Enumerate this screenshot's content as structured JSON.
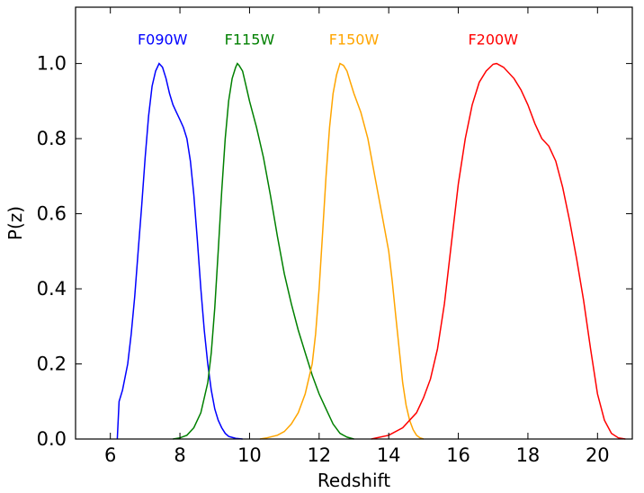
{
  "chart_data": {
    "type": "line",
    "title": "",
    "xlabel": "Redshift",
    "ylabel": "P(z)",
    "xlim": [
      5,
      21
    ],
    "ylim": [
      0,
      1.15
    ],
    "xticks": [
      6,
      8,
      10,
      12,
      14,
      16,
      18,
      20
    ],
    "xtick_labels": [
      "6",
      "8",
      "10",
      "12",
      "14",
      "16",
      "18",
      "20"
    ],
    "yticks": [
      0,
      0.2,
      0.4,
      0.6,
      0.8,
      1.0
    ],
    "ytick_labels": [
      "0.0",
      "0.2",
      "0.4",
      "0.6",
      "0.8",
      "1.0"
    ],
    "grid": false,
    "series": [
      {
        "name": "F090W",
        "color": "#0000ff",
        "points": [
          [
            6.2,
            0.0
          ],
          [
            6.25,
            0.1
          ],
          [
            6.35,
            0.13
          ],
          [
            6.5,
            0.2
          ],
          [
            6.6,
            0.28
          ],
          [
            6.7,
            0.38
          ],
          [
            6.8,
            0.5
          ],
          [
            6.9,
            0.62
          ],
          [
            7.0,
            0.75
          ],
          [
            7.1,
            0.86
          ],
          [
            7.2,
            0.94
          ],
          [
            7.3,
            0.98
          ],
          [
            7.4,
            1.0
          ],
          [
            7.5,
            0.99
          ],
          [
            7.6,
            0.96
          ],
          [
            7.7,
            0.92
          ],
          [
            7.8,
            0.89
          ],
          [
            7.9,
            0.87
          ],
          [
            8.0,
            0.85
          ],
          [
            8.1,
            0.83
          ],
          [
            8.2,
            0.8
          ],
          [
            8.3,
            0.74
          ],
          [
            8.4,
            0.65
          ],
          [
            8.5,
            0.53
          ],
          [
            8.6,
            0.4
          ],
          [
            8.7,
            0.29
          ],
          [
            8.8,
            0.2
          ],
          [
            8.9,
            0.13
          ],
          [
            9.0,
            0.08
          ],
          [
            9.1,
            0.05
          ],
          [
            9.2,
            0.03
          ],
          [
            9.3,
            0.015
          ],
          [
            9.4,
            0.007
          ],
          [
            9.6,
            0.002
          ],
          [
            9.8,
            0.0
          ]
        ]
      },
      {
        "name": "F115W",
        "color": "#008000",
        "points": [
          [
            7.8,
            0.0
          ],
          [
            8.0,
            0.003
          ],
          [
            8.2,
            0.01
          ],
          [
            8.4,
            0.03
          ],
          [
            8.6,
            0.07
          ],
          [
            8.8,
            0.15
          ],
          [
            8.9,
            0.23
          ],
          [
            9.0,
            0.35
          ],
          [
            9.1,
            0.5
          ],
          [
            9.2,
            0.66
          ],
          [
            9.3,
            0.8
          ],
          [
            9.4,
            0.9
          ],
          [
            9.5,
            0.96
          ],
          [
            9.6,
            0.99
          ],
          [
            9.65,
            1.0
          ],
          [
            9.7,
            0.995
          ],
          [
            9.8,
            0.98
          ],
          [
            9.9,
            0.94
          ],
          [
            10.0,
            0.9
          ],
          [
            10.2,
            0.83
          ],
          [
            10.4,
            0.75
          ],
          [
            10.6,
            0.65
          ],
          [
            10.8,
            0.54
          ],
          [
            11.0,
            0.44
          ],
          [
            11.2,
            0.36
          ],
          [
            11.4,
            0.29
          ],
          [
            11.6,
            0.23
          ],
          [
            11.8,
            0.17
          ],
          [
            12.0,
            0.12
          ],
          [
            12.2,
            0.08
          ],
          [
            12.4,
            0.04
          ],
          [
            12.6,
            0.015
          ],
          [
            12.8,
            0.005
          ],
          [
            13.0,
            0.0
          ]
        ]
      },
      {
        "name": "F150W",
        "color": "#ffa500",
        "points": [
          [
            10.3,
            0.0
          ],
          [
            10.5,
            0.003
          ],
          [
            10.8,
            0.01
          ],
          [
            11.0,
            0.02
          ],
          [
            11.2,
            0.04
          ],
          [
            11.4,
            0.07
          ],
          [
            11.6,
            0.12
          ],
          [
            11.8,
            0.2
          ],
          [
            11.9,
            0.28
          ],
          [
            12.0,
            0.4
          ],
          [
            12.1,
            0.55
          ],
          [
            12.2,
            0.7
          ],
          [
            12.3,
            0.83
          ],
          [
            12.4,
            0.92
          ],
          [
            12.5,
            0.97
          ],
          [
            12.6,
            1.0
          ],
          [
            12.7,
            0.995
          ],
          [
            12.8,
            0.98
          ],
          [
            12.9,
            0.95
          ],
          [
            13.0,
            0.92
          ],
          [
            13.2,
            0.87
          ],
          [
            13.4,
            0.8
          ],
          [
            13.6,
            0.7
          ],
          [
            13.8,
            0.6
          ],
          [
            14.0,
            0.5
          ],
          [
            14.1,
            0.42
          ],
          [
            14.2,
            0.33
          ],
          [
            14.3,
            0.24
          ],
          [
            14.4,
            0.15
          ],
          [
            14.5,
            0.09
          ],
          [
            14.6,
            0.05
          ],
          [
            14.7,
            0.025
          ],
          [
            14.8,
            0.01
          ],
          [
            14.9,
            0.003
          ],
          [
            15.0,
            0.0
          ]
        ]
      },
      {
        "name": "F200W",
        "color": "#ff0000",
        "points": [
          [
            13.5,
            0.0
          ],
          [
            14.0,
            0.01
          ],
          [
            14.4,
            0.03
          ],
          [
            14.8,
            0.07
          ],
          [
            15.0,
            0.11
          ],
          [
            15.2,
            0.16
          ],
          [
            15.4,
            0.24
          ],
          [
            15.6,
            0.36
          ],
          [
            15.8,
            0.52
          ],
          [
            16.0,
            0.68
          ],
          [
            16.2,
            0.8
          ],
          [
            16.4,
            0.89
          ],
          [
            16.6,
            0.95
          ],
          [
            16.8,
            0.98
          ],
          [
            17.0,
            0.998
          ],
          [
            17.1,
            1.0
          ],
          [
            17.3,
            0.99
          ],
          [
            17.6,
            0.96
          ],
          [
            17.8,
            0.93
          ],
          [
            18.0,
            0.89
          ],
          [
            18.2,
            0.84
          ],
          [
            18.4,
            0.8
          ],
          [
            18.6,
            0.78
          ],
          [
            18.8,
            0.74
          ],
          [
            19.0,
            0.67
          ],
          [
            19.2,
            0.58
          ],
          [
            19.4,
            0.48
          ],
          [
            19.6,
            0.37
          ],
          [
            19.8,
            0.24
          ],
          [
            20.0,
            0.12
          ],
          [
            20.2,
            0.05
          ],
          [
            20.4,
            0.015
          ],
          [
            20.6,
            0.003
          ],
          [
            20.8,
            0.0
          ]
        ]
      }
    ],
    "annotations": [
      {
        "text": "F090W",
        "x": 7.5,
        "y": 1.05,
        "color": "#0000ff"
      },
      {
        "text": "F115W",
        "x": 10.0,
        "y": 1.05,
        "color": "#008000"
      },
      {
        "text": "F150W",
        "x": 13.0,
        "y": 1.05,
        "color": "#ffa500"
      },
      {
        "text": "F200W",
        "x": 17.0,
        "y": 1.05,
        "color": "#ff0000"
      }
    ]
  }
}
